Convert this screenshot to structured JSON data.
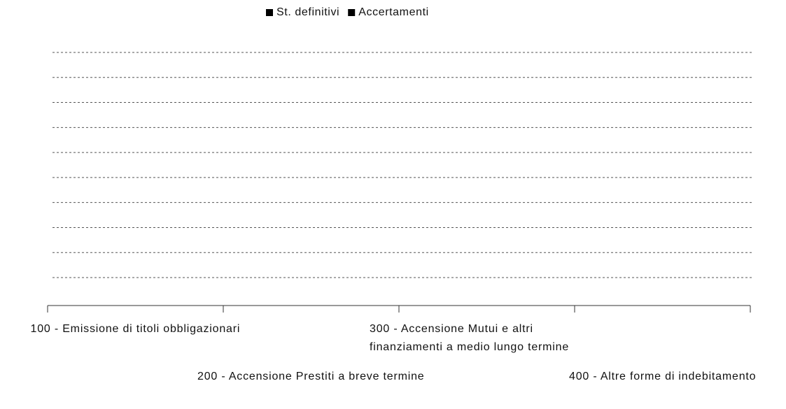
{
  "chart_data": {
    "type": "bar",
    "categories": [
      "100 - Emissione di titoli obbligazionari",
      "200 - Accensione Prestiti a breve termine",
      "300 - Accensione Mutui e altri finanziamenti a medio lungo termine",
      "400 - Altre forme di indebitamento"
    ],
    "series": [
      {
        "name": "St. definitivi",
        "color": "#000000",
        "values": [
          0,
          0,
          0,
          0
        ]
      },
      {
        "name": "Accertamenti",
        "color": "#000000",
        "values": [
          0,
          0,
          0,
          0
        ]
      }
    ],
    "grid": true,
    "legend": "top"
  }
}
